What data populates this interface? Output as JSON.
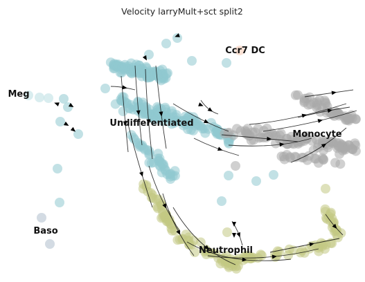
{
  "chart_data": {
    "type": "scatter",
    "title": "Velocity larryMult+sct split2",
    "xlabel": "",
    "ylabel": "",
    "axes_visible": false,
    "grid": false,
    "legend": "none",
    "overlay": "velocity streamlines with arrowheads",
    "clusters": [
      {
        "name": "Undifferentiated",
        "color": "#8fc9cf"
      },
      {
        "name": "Monocyte",
        "color": "#a9a9a9"
      },
      {
        "name": "Neutrophil",
        "color": "#c2c884"
      },
      {
        "name": "Ccr7 DC",
        "color": "#f5c8b0"
      },
      {
        "name": "Meg",
        "color": "#b9dfe2"
      },
      {
        "name": "Baso",
        "color": "#aebdcc"
      }
    ]
  }
}
